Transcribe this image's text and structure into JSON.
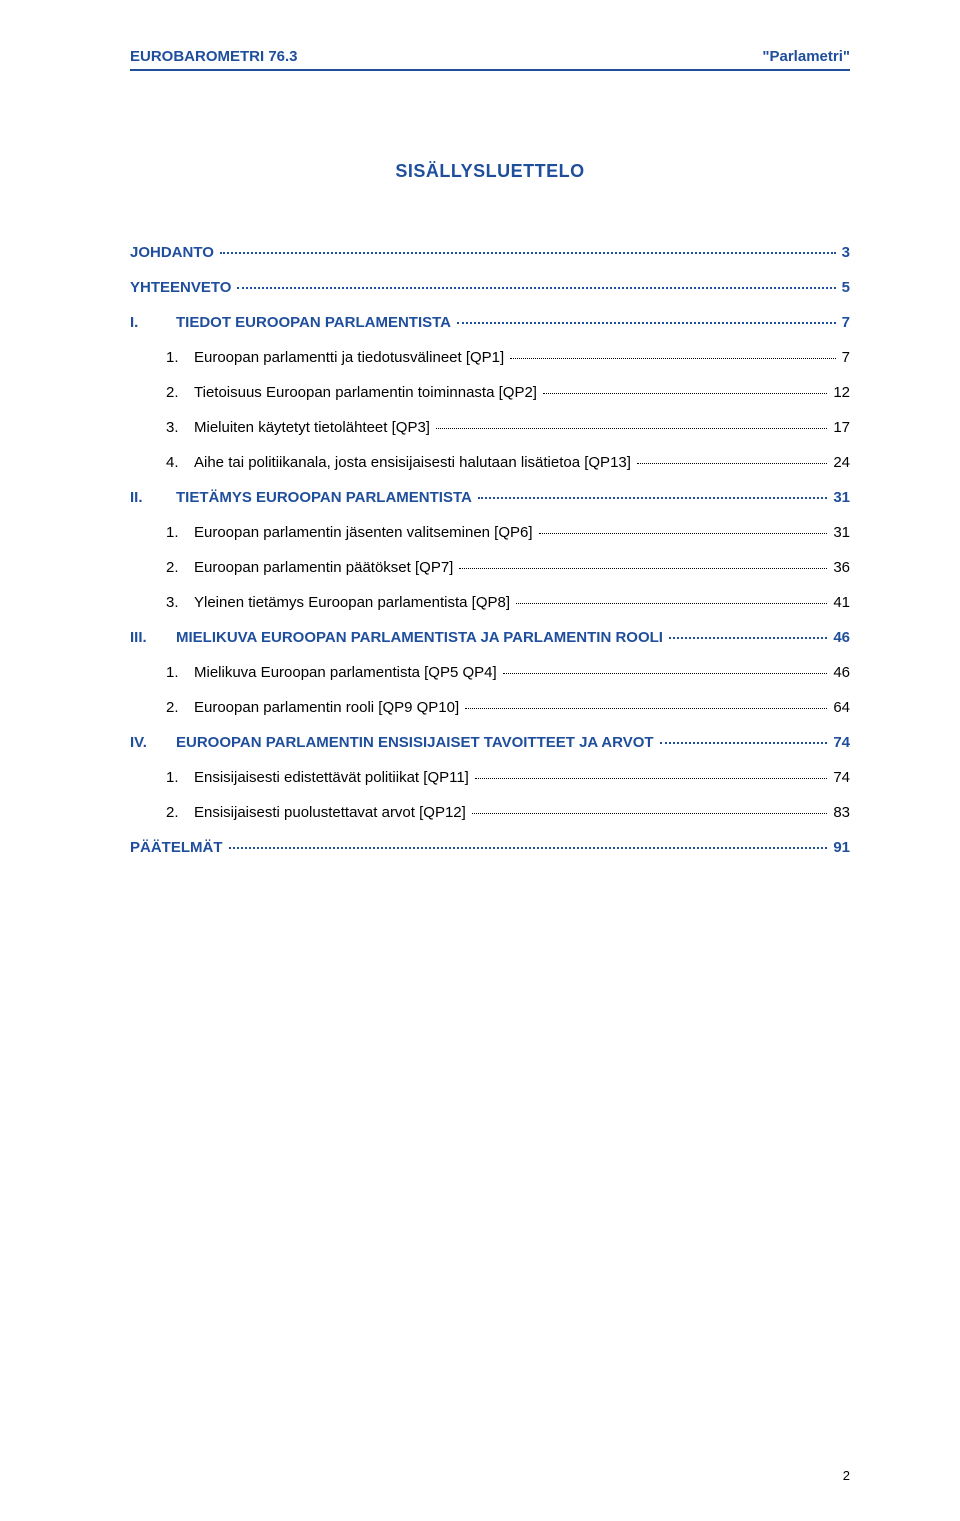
{
  "header": {
    "left": "EUROBAROMETRI 76.3",
    "right": "\"Parlametri\""
  },
  "title": "SISÄLLYSLUETTELO",
  "colors": {
    "accent": "#1f4e9c",
    "text": "#000000",
    "background": "#ffffff"
  },
  "toc": [
    {
      "level": 0,
      "num": "",
      "label": "JOHDANTO",
      "page": "3"
    },
    {
      "level": 0,
      "num": "",
      "label": "YHTEENVETO",
      "page": "5"
    },
    {
      "level": 1,
      "num": "I.",
      "label": "TIEDOT EUROOPAN PARLAMENTISTA",
      "page": "7"
    },
    {
      "level": 2,
      "num": "1.",
      "label": "Euroopan parlamentti ja tiedotusvälineet [QP1]",
      "page": "7"
    },
    {
      "level": 2,
      "num": "2.",
      "label": "Tietoisuus Euroopan parlamentin toiminnasta [QP2]",
      "page": "12"
    },
    {
      "level": 2,
      "num": "3.",
      "label": "Mieluiten käytetyt tietolähteet [QP3]",
      "page": "17"
    },
    {
      "level": 2,
      "num": "4.",
      "label": "Aihe tai politiikanala, josta ensisijaisesti halutaan lisätietoa [QP13]",
      "page": "24"
    },
    {
      "level": 1,
      "num": "II.",
      "label": "TIETÄMYS EUROOPAN PARLAMENTISTA",
      "page": "31"
    },
    {
      "level": 2,
      "num": "1.",
      "label": "Euroopan parlamentin jäsenten valitseminen [QP6]",
      "page": "31"
    },
    {
      "level": 2,
      "num": "2.",
      "label": "Euroopan parlamentin päätökset [QP7]",
      "page": "36"
    },
    {
      "level": 2,
      "num": "3.",
      "label": "Yleinen tietämys Euroopan parlamentista [QP8]",
      "page": "41"
    },
    {
      "level": 1,
      "num": "III.",
      "label": "MIELIKUVA EUROOPAN PARLAMENTISTA JA PARLAMENTIN ROOLI",
      "page": "46"
    },
    {
      "level": 2,
      "num": "1.",
      "label": "Mielikuva Euroopan parlamentista [QP5 QP4]",
      "page": "46"
    },
    {
      "level": 2,
      "num": "2.",
      "label": "Euroopan parlamentin rooli [QP9 QP10]",
      "page": "64"
    },
    {
      "level": 1,
      "num": "IV.",
      "label": "EUROOPAN PARLAMENTIN ENSISIJAISET TAVOITTEET JA ARVOT",
      "page": "74"
    },
    {
      "level": 2,
      "num": "1.",
      "label": "Ensisijaisesti edistettävät politiikat [QP11]",
      "page": "74"
    },
    {
      "level": 2,
      "num": "2.",
      "label": "Ensisijaisesti puolustettavat arvot [QP12]",
      "page": "83"
    },
    {
      "level": 0,
      "num": "",
      "label": "PÄÄTELMÄT",
      "page": "91"
    }
  ],
  "footer": {
    "page_number": "2"
  }
}
